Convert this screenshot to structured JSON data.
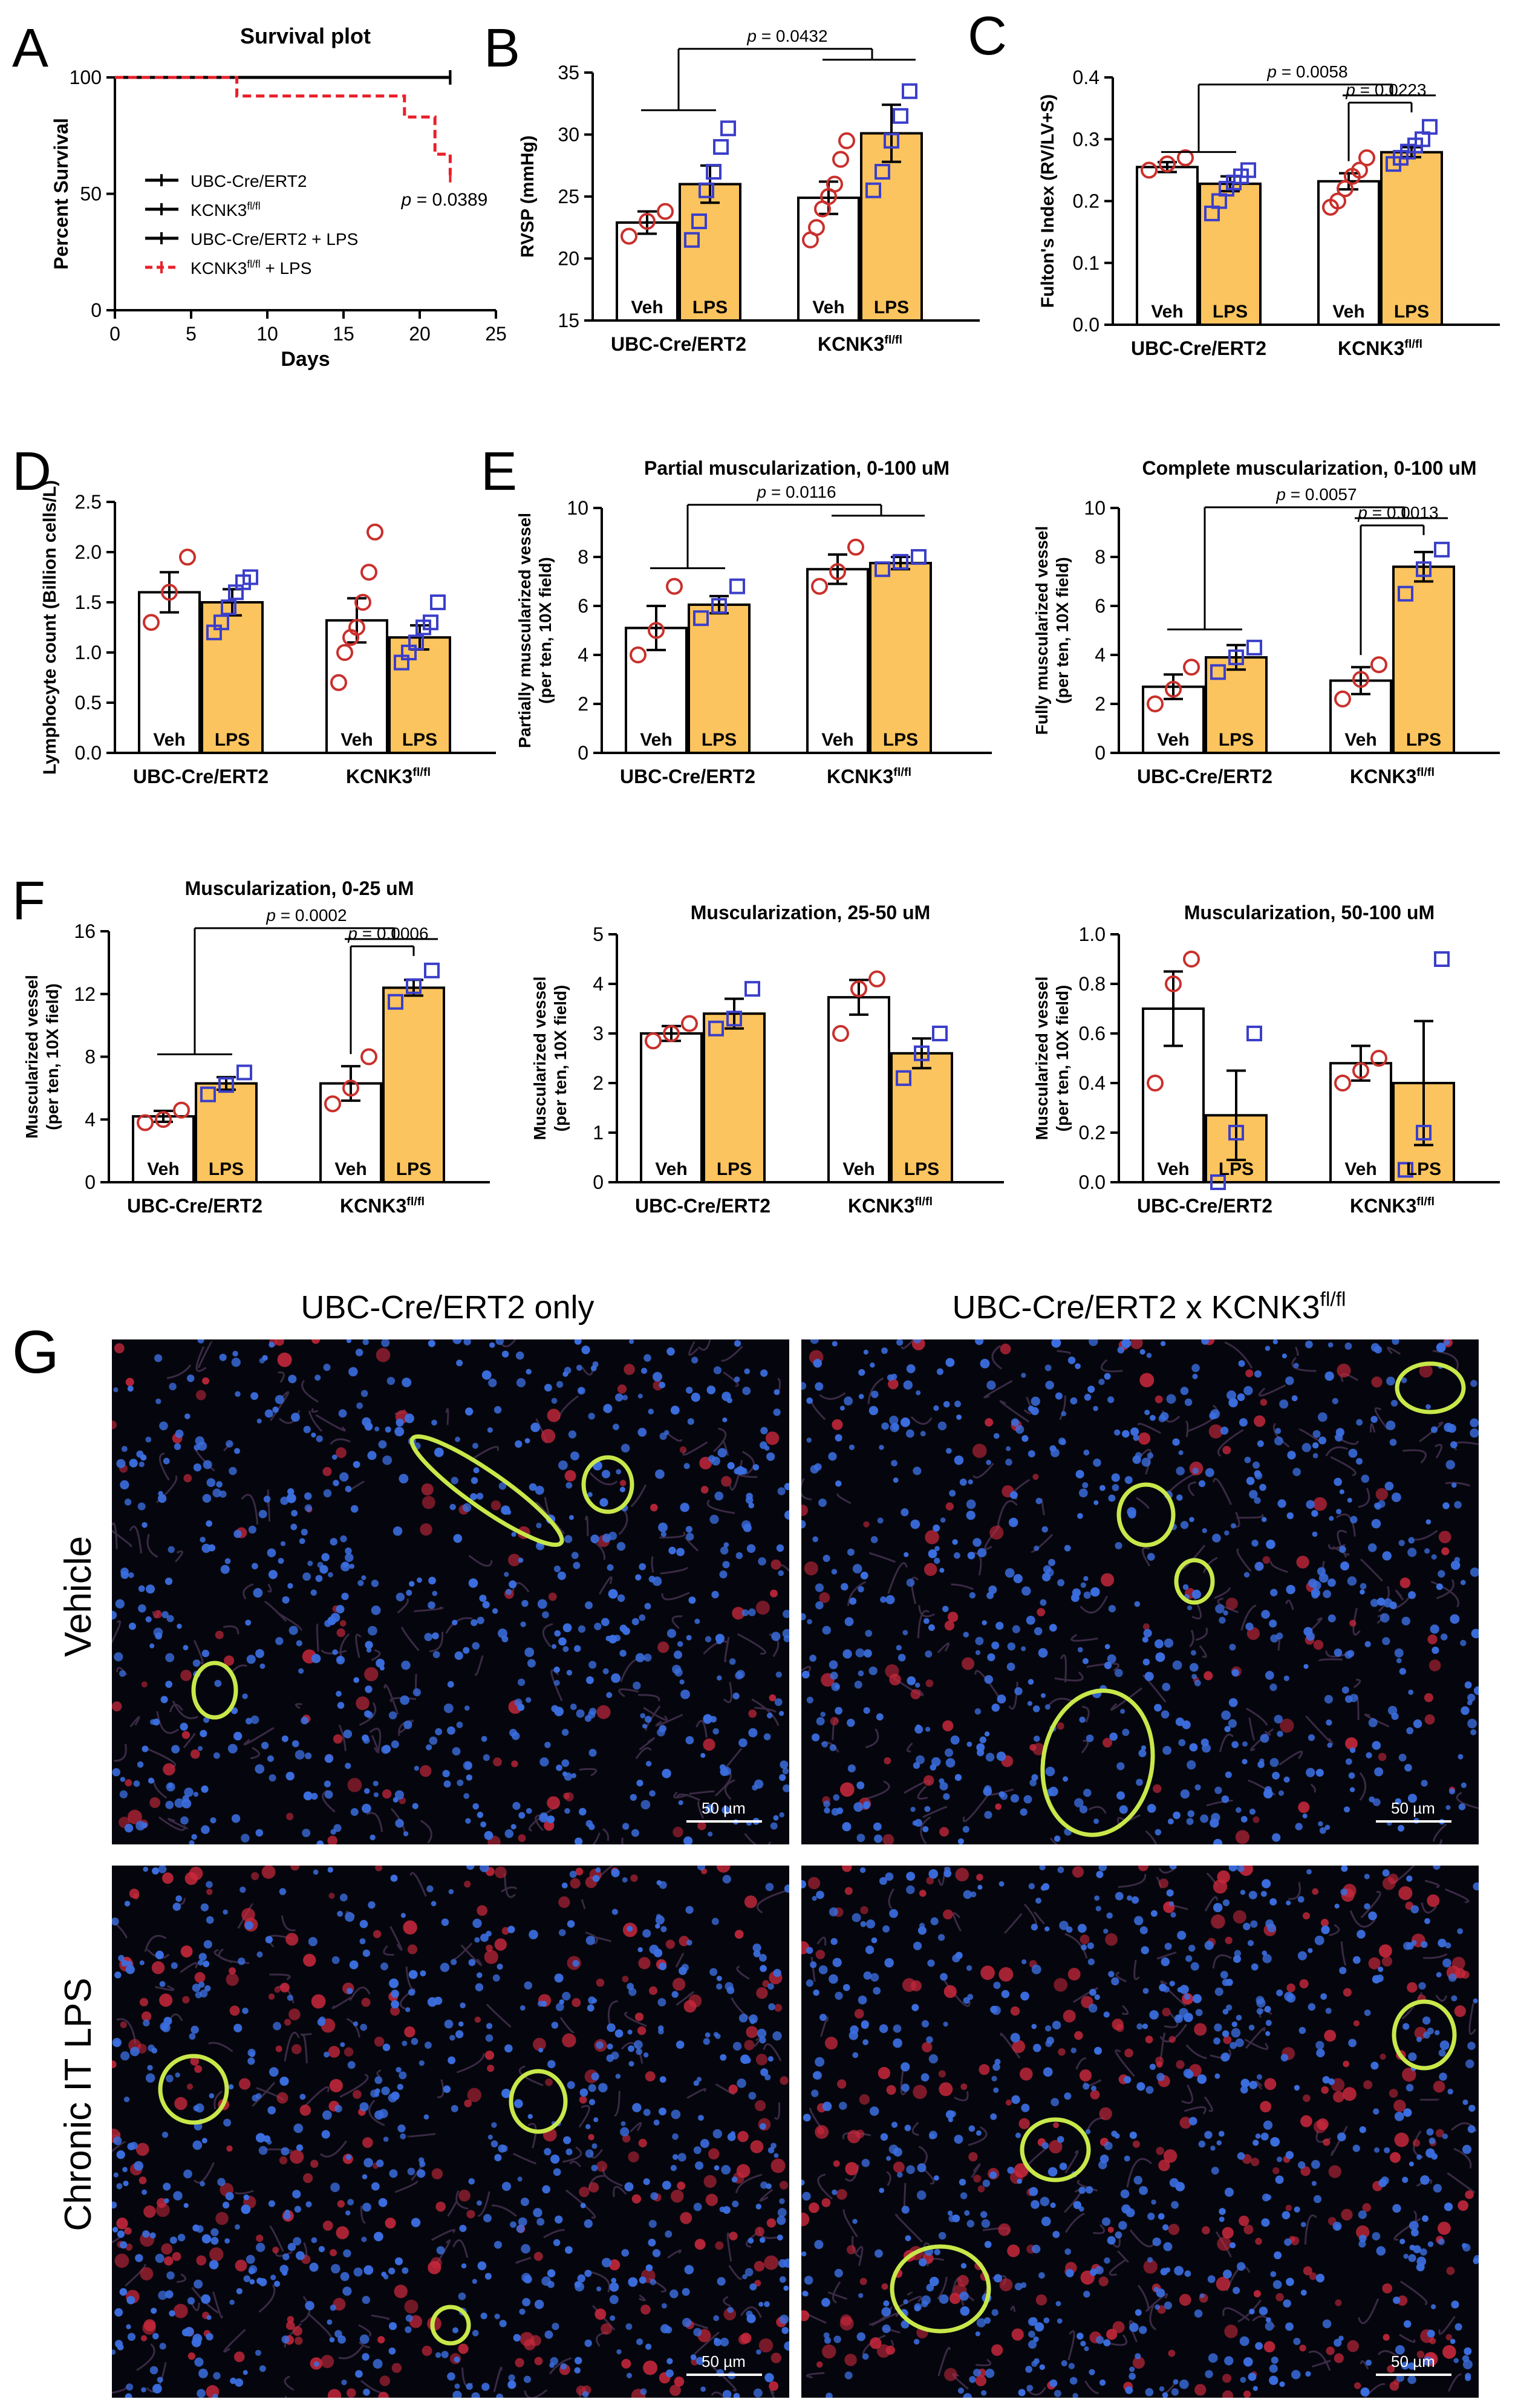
{
  "chart_data": [
    {
      "id": "A",
      "panel_letter": "A",
      "type": "line",
      "title": "Survival plot",
      "xlabel": "Days",
      "ylabel": "Percent Survival",
      "xlim": [
        0,
        25
      ],
      "ylim": [
        0,
        100
      ],
      "xticks": [
        0,
        5,
        10,
        15,
        20,
        25
      ],
      "yticks": [
        0,
        50,
        100
      ],
      "legend_position": "left",
      "series": [
        {
          "name": "UBC-Cre/ERT2",
          "color": "#000000",
          "dashed": false,
          "x": [
            0,
            22
          ],
          "y": [
            100,
            100
          ]
        },
        {
          "name": "KCNK3fl/fl",
          "color": "#000000",
          "dashed": false,
          "x": [
            0,
            22
          ],
          "y": [
            100,
            100
          ]
        },
        {
          "name": "UBC-Cre/ERT2 + LPS",
          "color": "#000000",
          "dashed": false,
          "x": [
            0,
            22
          ],
          "y": [
            100,
            100
          ]
        },
        {
          "name": "KCNK3fl/fl + LPS",
          "color": "#e8202a",
          "dashed": true,
          "x": [
            0,
            8,
            8,
            19,
            19,
            21,
            21,
            22,
            22
          ],
          "y": [
            100,
            100,
            92,
            92,
            83,
            83,
            67,
            67,
            58
          ]
        }
      ],
      "legend": [
        {
          "main": "UBC-Cre/ERT2",
          "sup": ""
        },
        {
          "main": "KCNK3",
          "sup": "fl/fl"
        },
        {
          "main": "UBC-Cre/ERT2 + LPS",
          "sup": ""
        },
        {
          "main": "KCNK3",
          "sup": "fl/fl",
          "suffix": " + LPS"
        }
      ],
      "p_annotation": "= 0.0389"
    },
    {
      "id": "B",
      "panel_letter": "B",
      "type": "bar",
      "title": "",
      "ylabel": [
        "RVSP (mmHg)"
      ],
      "ylim": [
        15,
        35
      ],
      "yticks": [
        15,
        20,
        25,
        30,
        35
      ],
      "groups": [
        {
          "main": "UBC-Cre/ERT2",
          "sup": ""
        },
        {
          "main": "KCNK3",
          "sup": "fl/fl"
        }
      ],
      "bar_labels": [
        "Veh",
        "LPS"
      ],
      "bars": [
        {
          "value": 22.9,
          "sem": 0.9,
          "points": [
            21.8,
            23.0,
            23.8
          ]
        },
        {
          "value": 26.0,
          "sem": 1.5,
          "points": [
            21.5,
            23.0,
            25.5,
            27.0,
            29.0,
            30.5
          ]
        },
        {
          "value": 24.9,
          "sem": 1.3,
          "points": [
            21.5,
            22.5,
            24.0,
            25.0,
            26.0,
            28.0,
            29.5
          ]
        },
        {
          "value": 30.1,
          "sem": 2.3,
          "points": [
            25.5,
            27.0,
            29.5,
            31.5,
            33.5
          ]
        }
      ],
      "sig": [
        {
          "p": "= 0.0432",
          "type": "outer"
        }
      ]
    },
    {
      "id": "C",
      "panel_letter": "C",
      "type": "bar",
      "title": "",
      "ylabel": [
        "Fulton's Index (RV/LV+S)"
      ],
      "ylim": [
        0,
        0.4
      ],
      "yticks": [
        0.0,
        0.1,
        0.2,
        0.3,
        0.4
      ],
      "tick_decimals": 1,
      "groups": [
        {
          "main": "UBC-Cre/ERT2",
          "sup": ""
        },
        {
          "main": "KCNK3",
          "sup": "fl/fl"
        }
      ],
      "bar_labels": [
        "Veh",
        "LPS"
      ],
      "bars": [
        {
          "value": 0.255,
          "sem": 0.008,
          "points": [
            0.25,
            0.26,
            0.27
          ]
        },
        {
          "value": 0.228,
          "sem": 0.012,
          "points": [
            0.18,
            0.2,
            0.22,
            0.23,
            0.24,
            0.25
          ]
        },
        {
          "value": 0.232,
          "sem": 0.013,
          "points": [
            0.19,
            0.2,
            0.22,
            0.24,
            0.25,
            0.27
          ]
        },
        {
          "value": 0.279,
          "sem": 0.008,
          "points": [
            0.26,
            0.27,
            0.28,
            0.29,
            0.3,
            0.32
          ]
        }
      ],
      "sig": [
        {
          "p": "= 0.0058",
          "type": "outer"
        },
        {
          "p": "= 0.0223",
          "type": "inner"
        }
      ]
    },
    {
      "id": "D",
      "panel_letter": "D",
      "type": "bar",
      "title": "",
      "ylabel": [
        "Lymphocyte count (Billion cells/L)"
      ],
      "ylim": [
        0,
        2.5
      ],
      "yticks": [
        0.0,
        0.5,
        1.0,
        1.5,
        2.0,
        2.5
      ],
      "tick_decimals": 1,
      "groups": [
        {
          "main": "UBC-Cre/ERT2",
          "sup": ""
        },
        {
          "main": "KCNK3",
          "sup": "fl/fl"
        }
      ],
      "bar_labels": [
        "Veh",
        "LPS"
      ],
      "bars": [
        {
          "value": 1.6,
          "sem": 0.2,
          "points": [
            1.3,
            1.6,
            1.95
          ]
        },
        {
          "value": 1.5,
          "sem": 0.13,
          "points": [
            1.2,
            1.3,
            1.45,
            1.6,
            1.7,
            1.75
          ]
        },
        {
          "value": 1.32,
          "sem": 0.22,
          "points": [
            0.7,
            1.0,
            1.15,
            1.25,
            1.5,
            1.8,
            2.2
          ]
        },
        {
          "value": 1.15,
          "sem": 0.12,
          "points": [
            0.9,
            1.0,
            1.1,
            1.25,
            1.3,
            1.5
          ]
        }
      ],
      "sig": []
    },
    {
      "id": "E1",
      "panel_letter": "E",
      "type": "bar",
      "title": "Partial muscularization, 0-100 uM",
      "ylabel": [
        "Partially muscularized vessel",
        "(per ten, 10X field)"
      ],
      "ylim": [
        0,
        10
      ],
      "yticks": [
        0,
        2,
        4,
        6,
        8,
        10
      ],
      "groups": [
        {
          "main": "UBC-Cre/ERT2",
          "sup": ""
        },
        {
          "main": "KCNK3",
          "sup": "fl/fl"
        }
      ],
      "bar_labels": [
        "Veh",
        "LPS"
      ],
      "bars": [
        {
          "value": 5.1,
          "sem": 0.9,
          "points": [
            4.0,
            5.0,
            6.8
          ]
        },
        {
          "value": 6.05,
          "sem": 0.35,
          "points": [
            5.5,
            6.0,
            6.8
          ]
        },
        {
          "value": 7.5,
          "sem": 0.6,
          "points": [
            6.8,
            7.4,
            8.4
          ]
        },
        {
          "value": 7.75,
          "sem": 0.25,
          "points": [
            7.5,
            7.8,
            8.0
          ]
        }
      ],
      "sig": [
        {
          "p": "= 0.0116",
          "type": "outer"
        }
      ]
    },
    {
      "id": "E2",
      "panel_letter": "",
      "type": "bar",
      "title": "Complete muscularization, 0-100 uM",
      "ylabel": [
        "Fully muscularized vessel",
        "(per ten, 10X field)"
      ],
      "ylim": [
        0,
        10
      ],
      "yticks": [
        0,
        2,
        4,
        6,
        8,
        10
      ],
      "groups": [
        {
          "main": "UBC-Cre/ERT2",
          "sup": ""
        },
        {
          "main": "KCNK3",
          "sup": "fl/fl"
        }
      ],
      "bar_labels": [
        "Veh",
        "LPS"
      ],
      "bars": [
        {
          "value": 2.7,
          "sem": 0.5,
          "points": [
            2.0,
            2.6,
            3.5
          ]
        },
        {
          "value": 3.9,
          "sem": 0.5,
          "points": [
            3.3,
            3.9,
            4.3
          ]
        },
        {
          "value": 2.95,
          "sem": 0.55,
          "points": [
            2.2,
            3.0,
            3.6
          ]
        },
        {
          "value": 7.6,
          "sem": 0.6,
          "points": [
            6.5,
            7.5,
            8.3
          ]
        }
      ],
      "sig": [
        {
          "p": "= 0.0057",
          "type": "outer"
        },
        {
          "p": "= 0.0013",
          "type": "inner"
        }
      ]
    },
    {
      "id": "F1",
      "panel_letter": "F",
      "type": "bar",
      "title": "Muscularization, 0-25 uM",
      "ylabel": [
        "Muscularized vessel",
        "(per ten, 10X field)"
      ],
      "ylim": [
        0,
        16
      ],
      "yticks": [
        0,
        4,
        8,
        12,
        16
      ],
      "groups": [
        {
          "main": "UBC-Cre/ERT2",
          "sup": ""
        },
        {
          "main": "KCNK3",
          "sup": "fl/fl"
        }
      ],
      "bar_labels": [
        "Veh",
        "LPS"
      ],
      "bars": [
        {
          "value": 4.2,
          "sem": 0.35,
          "points": [
            3.8,
            4.0,
            4.6
          ]
        },
        {
          "value": 6.3,
          "sem": 0.4,
          "points": [
            5.6,
            6.2,
            7.0
          ]
        },
        {
          "value": 6.3,
          "sem": 1.1,
          "points": [
            5.0,
            6.0,
            8.0
          ]
        },
        {
          "value": 12.4,
          "sem": 0.5,
          "points": [
            11.5,
            12.5,
            13.5
          ]
        }
      ],
      "sig": [
        {
          "p": "= 0.0002",
          "type": "outer"
        },
        {
          "p": "= 0.0006",
          "type": "inner"
        }
      ]
    },
    {
      "id": "F2",
      "panel_letter": "",
      "type": "bar",
      "title": "Muscularization, 25-50 uM",
      "ylabel": [
        "Muscularized vessel",
        "(per ten, 10X field)"
      ],
      "ylim": [
        0,
        5
      ],
      "yticks": [
        0,
        1,
        2,
        3,
        4,
        5
      ],
      "groups": [
        {
          "main": "UBC-Cre/ERT2",
          "sup": ""
        },
        {
          "main": "KCNK3",
          "sup": "fl/fl"
        }
      ],
      "bar_labels": [
        "Veh",
        "LPS"
      ],
      "bars": [
        {
          "value": 3.0,
          "sem": 0.15,
          "points": [
            2.85,
            3.0,
            3.2
          ]
        },
        {
          "value": 3.4,
          "sem": 0.3,
          "points": [
            3.1,
            3.3,
            3.9
          ]
        },
        {
          "value": 3.73,
          "sem": 0.35,
          "points": [
            3.0,
            3.9,
            4.1
          ]
        },
        {
          "value": 2.6,
          "sem": 0.3,
          "points": [
            2.1,
            2.6,
            3.0
          ]
        }
      ],
      "sig": []
    },
    {
      "id": "F3",
      "panel_letter": "",
      "type": "bar",
      "title": "Muscularization, 50-100 uM",
      "ylabel": [
        "Muscularized vessel",
        "(per ten, 10X field)"
      ],
      "ylim": [
        0,
        1.0
      ],
      "yticks": [
        0.0,
        0.2,
        0.4,
        0.6,
        0.8,
        1.0
      ],
      "tick_decimals": 1,
      "groups": [
        {
          "main": "UBC-Cre/ERT2",
          "sup": ""
        },
        {
          "main": "KCNK3",
          "sup": "fl/fl"
        }
      ],
      "bar_labels": [
        "Veh",
        "LPS"
      ],
      "bars": [
        {
          "value": 0.7,
          "sem": 0.15,
          "points": [
            0.4,
            0.8,
            0.9
          ]
        },
        {
          "value": 0.27,
          "sem": 0.18,
          "points": [
            0.0,
            0.2,
            0.6
          ]
        },
        {
          "value": 0.48,
          "sem": 0.07,
          "points": [
            0.4,
            0.45,
            0.5
          ]
        },
        {
          "value": 0.4,
          "sem": 0.25,
          "points": [
            0.05,
            0.2,
            0.9
          ]
        }
      ],
      "sig": []
    }
  ],
  "panel_g": {
    "letter": "G",
    "col_titles": [
      {
        "main": "UBC-Cre/ERT2 only",
        "sup": ""
      },
      {
        "main": "UBC-Cre/ERT2 x KCNK3",
        "sup": "fl/fl"
      }
    ],
    "row_titles": [
      "Vehicle",
      "Chronic IT LPS"
    ],
    "scale_label": "50 µm"
  },
  "colors": {
    "veh_fill": "#ffffff",
    "lps_fill": "#fbc45e",
    "veh_point": "#c9302c",
    "lps_point": "#3b3fc9",
    "survival_red": "#e8202a",
    "line": "#000000",
    "nuclei": "#3b6ee0",
    "vessel": "#c8e84a",
    "cells_red": "#c8283c"
  }
}
